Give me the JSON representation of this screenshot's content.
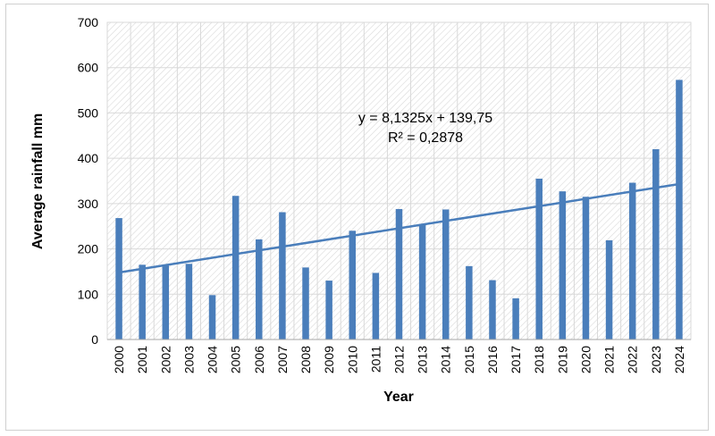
{
  "chart_data": {
    "type": "bar",
    "categories": [
      "2000",
      "2001",
      "2002",
      "2003",
      "2004",
      "2005",
      "2006",
      "2007",
      "2008",
      "2009",
      "2010",
      "2011",
      "2012",
      "2013",
      "2014",
      "2015",
      "2016",
      "2017",
      "2018",
      "2019",
      "2020",
      "2021",
      "2022",
      "2023",
      "2024"
    ],
    "values": [
      268,
      165,
      165,
      167,
      98,
      317,
      221,
      281,
      159,
      130,
      240,
      147,
      288,
      255,
      287,
      162,
      131,
      91,
      355,
      327,
      315,
      219,
      346,
      420,
      573
    ],
    "xlabel": "Year",
    "ylabel": "Average rainfall mm",
    "ylim": [
      0,
      700
    ],
    "yticks": [
      0,
      100,
      200,
      300,
      400,
      500,
      600,
      700
    ],
    "grid": true,
    "legend": "none",
    "trendline": {
      "type": "linear",
      "slope": 8.1325,
      "intercept": 139.75,
      "equation_text": "y = 8,1325x + 139,75",
      "r2_text": "R² = 0,2878"
    },
    "colors": {
      "bar": "#4a7ebb",
      "trendline": "#4a7ebb"
    }
  }
}
